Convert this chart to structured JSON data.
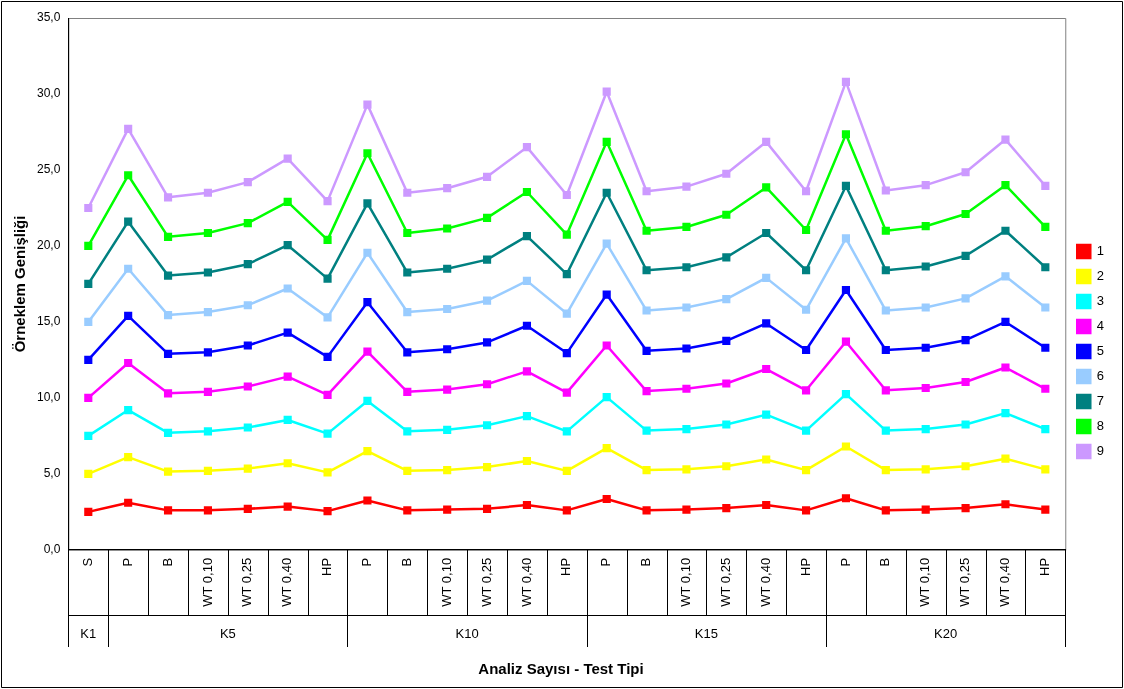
{
  "chart_data": {
    "type": "line",
    "xlabel": "Analiz Sayısı - Test Tipi",
    "ylabel": "Örneklem Genişliği",
    "categories": [
      "S",
      "P",
      "B",
      "WT 0,10",
      "WT 0,25",
      "WT 0,40",
      "HP",
      "P",
      "B",
      "WT 0,10",
      "WT 0,25",
      "WT 0,40",
      "HP",
      "P",
      "B",
      "WT 0,10",
      "WT 0,25",
      "WT 0,40",
      "HP",
      "P",
      "B",
      "WT 0,10",
      "WT 0,25",
      "WT 0,40",
      "HP"
    ],
    "annotations": [
      "K1",
      "K5",
      "K10",
      "K15",
      "K20"
    ],
    "ylim": [
      0,
      35
    ],
    "yticks": [
      {
        "value": 0,
        "label": "0,0"
      },
      {
        "value": 5,
        "label": "5,0"
      },
      {
        "value": 10,
        "label": "10,0"
      },
      {
        "value": 15,
        "label": "15,0"
      },
      {
        "value": 20,
        "label": "20,0"
      },
      {
        "value": 25,
        "label": "25,0"
      },
      {
        "value": 30,
        "label": "30,0"
      },
      {
        "value": 35,
        "label": "35,0"
      }
    ],
    "grid": false,
    "legend": "right",
    "marker": "square",
    "series": [
      {
        "name": "1",
        "color": "#ff0000",
        "values": [
          2.5,
          3.1,
          2.6,
          2.6,
          2.7,
          2.85,
          2.55,
          3.25,
          2.6,
          2.65,
          2.7,
          2.95,
          2.6,
          3.35,
          2.6,
          2.65,
          2.75,
          2.95,
          2.6,
          3.4,
          2.6,
          2.65,
          2.75,
          3.0,
          2.65
        ]
      },
      {
        "name": "2",
        "color": "#ffff00",
        "values": [
          5.0,
          6.1,
          5.15,
          5.2,
          5.35,
          5.7,
          5.1,
          6.5,
          5.2,
          5.25,
          5.45,
          5.85,
          5.2,
          6.7,
          5.25,
          5.3,
          5.5,
          5.95,
          5.25,
          6.8,
          5.25,
          5.3,
          5.5,
          6.0,
          5.3
        ]
      },
      {
        "name": "3",
        "color": "#00ffff",
        "values": [
          7.5,
          9.2,
          7.7,
          7.8,
          8.05,
          8.55,
          7.65,
          9.8,
          7.8,
          7.9,
          8.2,
          8.8,
          7.8,
          10.05,
          7.85,
          7.95,
          8.25,
          8.9,
          7.85,
          10.25,
          7.85,
          7.95,
          8.25,
          9.0,
          7.95
        ]
      },
      {
        "name": "4",
        "color": "#ff00ff",
        "values": [
          10.0,
          12.3,
          10.3,
          10.4,
          10.75,
          11.4,
          10.2,
          13.05,
          10.4,
          10.55,
          10.9,
          11.75,
          10.35,
          13.45,
          10.45,
          10.6,
          10.95,
          11.9,
          10.5,
          13.7,
          10.5,
          10.65,
          11.05,
          12.0,
          10.6
        ]
      },
      {
        "name": "5",
        "color": "#0000ff",
        "values": [
          12.5,
          15.4,
          12.9,
          13.0,
          13.45,
          14.3,
          12.7,
          16.3,
          13.0,
          13.2,
          13.65,
          14.75,
          12.95,
          16.8,
          13.1,
          13.25,
          13.75,
          14.9,
          13.15,
          17.1,
          13.15,
          13.3,
          13.8,
          15.0,
          13.3
        ]
      },
      {
        "name": "6",
        "color": "#99ccff",
        "values": [
          15.0,
          18.5,
          15.45,
          15.65,
          16.1,
          17.2,
          15.3,
          19.55,
          15.65,
          15.85,
          16.4,
          17.7,
          15.55,
          20.15,
          15.75,
          15.95,
          16.5,
          17.9,
          15.8,
          20.5,
          15.75,
          15.95,
          16.55,
          18.0,
          15.95
        ]
      },
      {
        "name": "7",
        "color": "#008080",
        "values": [
          17.5,
          21.6,
          18.05,
          18.25,
          18.8,
          20.05,
          17.85,
          22.8,
          18.25,
          18.5,
          19.1,
          20.65,
          18.15,
          23.5,
          18.4,
          18.6,
          19.25,
          20.85,
          18.4,
          23.95,
          18.4,
          18.65,
          19.35,
          21.0,
          18.6
        ]
      },
      {
        "name": "8",
        "color": "#00ff00",
        "values": [
          20.0,
          24.65,
          20.6,
          20.85,
          21.5,
          22.9,
          20.4,
          26.1,
          20.85,
          21.15,
          21.85,
          23.55,
          20.75,
          26.85,
          21.0,
          21.25,
          22.05,
          23.85,
          21.05,
          27.35,
          21.0,
          21.3,
          22.1,
          24.0,
          21.25
        ]
      },
      {
        "name": "9",
        "color": "#cc99ff",
        "values": [
          22.5,
          27.7,
          23.2,
          23.5,
          24.2,
          25.75,
          22.95,
          29.3,
          23.5,
          23.8,
          24.55,
          26.5,
          23.35,
          30.15,
          23.6,
          23.9,
          24.75,
          26.85,
          23.6,
          30.8,
          23.65,
          24.0,
          24.85,
          27.0,
          23.95
        ]
      }
    ]
  }
}
